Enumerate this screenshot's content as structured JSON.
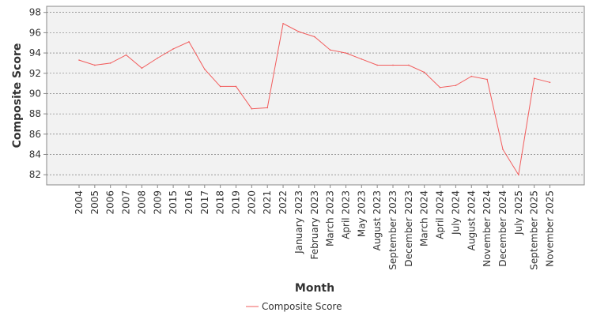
{
  "chart_data": {
    "type": "line",
    "xlabel": "Month",
    "ylabel": "Composite Score",
    "ylim": [
      81,
      98.6
    ],
    "yticks": [
      82,
      84,
      86,
      88,
      90,
      92,
      94,
      96,
      98
    ],
    "grid": true,
    "legend_position": "bottom",
    "categories": [
      "2004",
      "2005",
      "2006",
      "2007",
      "2008",
      "2009",
      "2015",
      "2016",
      "2017",
      "2018",
      "2019",
      "2020",
      "2021",
      "2022",
      "January 2023",
      "February 2023",
      "March 2023",
      "April 2023",
      "May 2023",
      "August 2023",
      "September 2023",
      "December 2023",
      "March 2024",
      "April 2024",
      "July 2024",
      "August 2024",
      "November 2024",
      "December 2024",
      "July 2025",
      "September 2025",
      "November 2025"
    ],
    "series": [
      {
        "name": "Composite Score",
        "color": "#f25c5c",
        "values": [
          93.3,
          92.8,
          93.0,
          93.8,
          92.5,
          93.5,
          94.4,
          95.1,
          92.4,
          90.7,
          90.7,
          88.5,
          88.6,
          96.9,
          96.1,
          95.6,
          94.3,
          94.0,
          93.4,
          92.8,
          92.8,
          92.8,
          92.1,
          90.6,
          90.8,
          91.7,
          91.4,
          84.5,
          82.0,
          91.5,
          91.1
        ]
      }
    ]
  }
}
